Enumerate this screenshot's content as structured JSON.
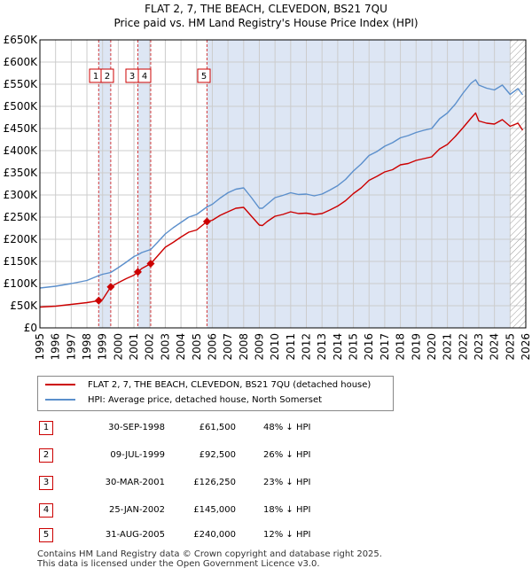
{
  "title_line1": "FLAT 2, 7, THE BEACH, CLEVEDON, BS21 7QU",
  "title_line2": "Price paid vs. HM Land Registry's House Price Index (HPI)",
  "legend": {
    "property_label": "FLAT 2, 7, THE BEACH, CLEVEDON, BS21 7QU (detached house)",
    "hpi_label": "HPI: Average price, detached house, North Somerset"
  },
  "colors": {
    "property": "#cc0000",
    "hpi": "#5b8fcc",
    "shade": "#dde6f4",
    "grid": "#cccccc"
  },
  "transactions": [
    {
      "num": "1",
      "date": "30-SEP-1998",
      "price": "£61,500",
      "hpi": "48% ↓ HPI"
    },
    {
      "num": "2",
      "date": "09-JUL-1999",
      "price": "£92,500",
      "hpi": "26% ↓ HPI"
    },
    {
      "num": "3",
      "date": "30-MAR-2001",
      "price": "£126,250",
      "hpi": "23% ↓ HPI"
    },
    {
      "num": "4",
      "date": "25-JAN-2002",
      "price": "£145,000",
      "hpi": "18% ↓ HPI"
    },
    {
      "num": "5",
      "date": "31-AUG-2005",
      "price": "£240,000",
      "hpi": "12% ↓ HPI"
    }
  ],
  "footer_line1": "Contains HM Land Registry data © Crown copyright and database right 2025.",
  "footer_line2": "This data is licensed under the Open Government Licence v3.0.",
  "chart_data": {
    "type": "line",
    "title": "FLAT 2, 7, THE BEACH, CLEVEDON, BS21 7QU",
    "subtitle": "Price paid vs. HM Land Registry's House Price Index (HPI)",
    "xlabel": "",
    "ylabel": "",
    "xlim": [
      1995,
      2026
    ],
    "ylim": [
      0,
      650000
    ],
    "grid": true,
    "legend_position": "bottom",
    "x_ticks": [
      1995,
      1996,
      1997,
      1998,
      1999,
      2000,
      2001,
      2002,
      2003,
      2004,
      2005,
      2006,
      2007,
      2008,
      2009,
      2010,
      2011,
      2012,
      2013,
      2014,
      2015,
      2016,
      2017,
      2018,
      2019,
      2020,
      2021,
      2022,
      2023,
      2024,
      2025,
      2026
    ],
    "x_tick_labels": [
      "1995",
      "1996",
      "1997",
      "1998",
      "1999",
      "2000",
      "2001",
      "2002",
      "2003",
      "2004",
      "2005",
      "2006",
      "2007",
      "2008",
      "2009",
      "2010",
      "2011",
      "2012",
      "2013",
      "2014",
      "2015",
      "2016",
      "2017",
      "2018",
      "2019",
      "2020",
      "2021",
      "2022",
      "2023",
      "2024",
      "2025",
      "2026"
    ],
    "y_ticks": [
      0,
      50000,
      100000,
      150000,
      200000,
      250000,
      300000,
      350000,
      400000,
      450000,
      500000,
      550000,
      600000,
      650000
    ],
    "y_tick_labels": [
      "£0",
      "£50K",
      "£100K",
      "£150K",
      "£200K",
      "£250K",
      "£300K",
      "£350K",
      "£400K",
      "£450K",
      "£500K",
      "£550K",
      "£600K",
      "£650K"
    ],
    "hatch_from": 2025.0,
    "series": [
      {
        "name": "FLAT 2, 7, THE BEACH, CLEVEDON, BS21 7QU (detached house)",
        "x": [
          1995.0,
          1996.0,
          1997.0,
          1998.0,
          1998.75,
          1999.0,
          1999.52,
          2000.0,
          2000.5,
          2001.0,
          2001.25,
          2001.5,
          2002.07,
          2002.5,
          2003.0,
          2003.5,
          2004.0,
          2004.5,
          2005.0,
          2005.66,
          2006.0,
          2006.5,
          2007.0,
          2007.5,
          2008.0,
          2008.5,
          2009.0,
          2009.2,
          2009.5,
          2010.0,
          2010.5,
          2011.0,
          2011.5,
          2012.0,
          2012.5,
          2013.0,
          2013.5,
          2014.0,
          2014.5,
          2015.0,
          2015.5,
          2016.0,
          2016.5,
          2017.0,
          2017.5,
          2018.0,
          2018.5,
          2019.0,
          2019.5,
          2020.0,
          2020.5,
          2021.0,
          2021.5,
          2022.0,
          2022.5,
          2022.8,
          2023.0,
          2023.5,
          2024.0,
          2024.5,
          2025.0,
          2025.5,
          2025.8
        ],
        "y": [
          47000,
          49000,
          53000,
          57000,
          61500,
          64000,
          92500,
          102000,
          111000,
          119000,
          126250,
          134000,
          145000,
          162000,
          182000,
          193000,
          205000,
          216000,
          221000,
          240000,
          243000,
          254000,
          262000,
          270000,
          272000,
          252000,
          232000,
          231000,
          240000,
          252000,
          256000,
          262000,
          258000,
          259000,
          256000,
          258000,
          266000,
          275000,
          287000,
          303000,
          316000,
          333000,
          342000,
          352000,
          357000,
          368000,
          371000,
          378000,
          382000,
          386000,
          404000,
          414000,
          432000,
          452000,
          473000,
          485000,
          467000,
          462000,
          460000,
          470000,
          455000,
          462000,
          446000
        ]
      },
      {
        "name": "HPI: Average price, detached house, North Somerset",
        "x": [
          1995.0,
          1996.0,
          1997.0,
          1998.0,
          1998.75,
          1999.0,
          1999.52,
          2000.0,
          2000.5,
          2001.0,
          2001.25,
          2001.5,
          2002.07,
          2002.5,
          2003.0,
          2003.5,
          2004.0,
          2004.5,
          2005.0,
          2005.66,
          2006.0,
          2006.5,
          2007.0,
          2007.5,
          2008.0,
          2008.5,
          2009.0,
          2009.2,
          2009.5,
          2010.0,
          2010.5,
          2011.0,
          2011.5,
          2012.0,
          2012.5,
          2013.0,
          2013.5,
          2014.0,
          2014.5,
          2015.0,
          2015.5,
          2016.0,
          2016.5,
          2017.0,
          2017.5,
          2018.0,
          2018.5,
          2019.0,
          2019.5,
          2020.0,
          2020.5,
          2021.0,
          2021.5,
          2022.0,
          2022.5,
          2022.8,
          2023.0,
          2023.5,
          2024.0,
          2024.5,
          2025.0,
          2025.5,
          2025.8
        ],
        "y": [
          90000,
          94000,
          100000,
          107000,
          118000,
          121000,
          125000,
          136000,
          148000,
          161000,
          165000,
          170000,
          177000,
          193000,
          212000,
          226000,
          238000,
          250000,
          256000,
          273000,
          279000,
          293000,
          305000,
          313000,
          316000,
          294000,
          270000,
          270000,
          279000,
          294000,
          299000,
          305000,
          301000,
          302000,
          298000,
          302000,
          311000,
          321000,
          335000,
          354000,
          370000,
          389000,
          398000,
          410000,
          418000,
          429000,
          434000,
          441000,
          446000,
          450000,
          472000,
          485000,
          505000,
          530000,
          552000,
          560000,
          548000,
          541000,
          537000,
          548000,
          527000,
          540000,
          526000
        ]
      }
    ],
    "markers": [
      {
        "num": "1",
        "x": 1998.75,
        "y": 61500
      },
      {
        "num": "2",
        "x": 1999.52,
        "y": 92500
      },
      {
        "num": "3",
        "x": 2001.25,
        "y": 126250
      },
      {
        "num": "4",
        "x": 2002.07,
        "y": 145000
      },
      {
        "num": "5",
        "x": 2005.66,
        "y": 240000
      }
    ]
  }
}
